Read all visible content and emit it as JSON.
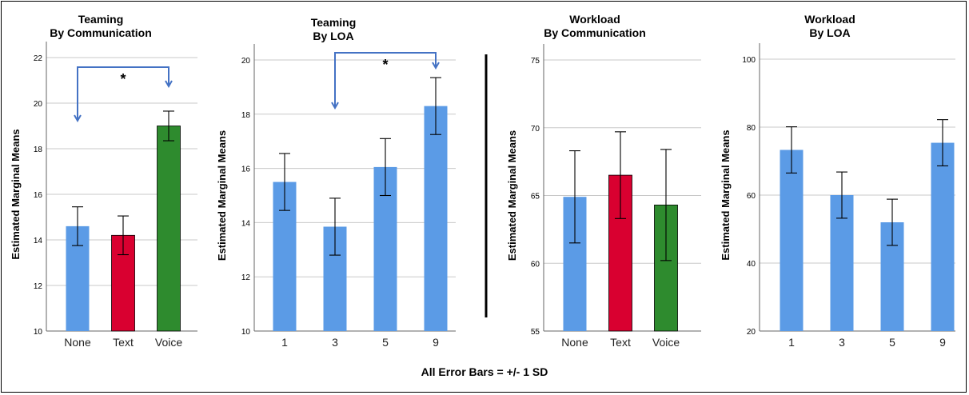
{
  "footnote": "All Error Bars = +/- 1 SD",
  "chart_data": [
    {
      "type": "bar",
      "title": "Teaming",
      "subtitle": "By Communication",
      "ylabel": "Estimated Marginal Means",
      "categories": [
        "None",
        "Text",
        "Voice"
      ],
      "values": [
        14.6,
        14.2,
        19.0
      ],
      "error": [
        0.85,
        0.85,
        0.65
      ],
      "ylim": [
        10,
        22
      ],
      "yticks": [
        10,
        12,
        14,
        16,
        18,
        20,
        22
      ],
      "colors": [
        "#5b9be6",
        "#d90030",
        "#2e8b2e"
      ],
      "annotations": [
        {
          "from": "None",
          "to": "Voice",
          "label": "*"
        }
      ]
    },
    {
      "type": "bar",
      "title": "Teaming",
      "subtitle": "By LOA",
      "ylabel": "Estimated Marginal Means",
      "categories": [
        "1",
        "3",
        "5",
        "9"
      ],
      "values": [
        15.5,
        13.85,
        16.05,
        18.3
      ],
      "error": [
        1.05,
        1.05,
        1.05,
        1.05
      ],
      "ylim": [
        10,
        20
      ],
      "yticks": [
        10,
        12,
        14,
        16,
        18,
        20
      ],
      "colors": [
        "#5b9be6",
        "#5b9be6",
        "#5b9be6",
        "#5b9be6"
      ],
      "annotations": [
        {
          "from": "3",
          "to": "9",
          "label": "*"
        }
      ]
    },
    {
      "type": "bar",
      "title": "Workload",
      "subtitle": "By Communication",
      "ylabel": "Estimated Marginal Means",
      "categories": [
        "None",
        "Text",
        "Voice"
      ],
      "values": [
        64.9,
        66.5,
        64.3
      ],
      "error": [
        3.4,
        3.2,
        4.1
      ],
      "ylim": [
        55,
        75
      ],
      "yticks": [
        55,
        60,
        65,
        70,
        75
      ],
      "colors": [
        "#5b9be6",
        "#d90030",
        "#2e8b2e"
      ],
      "annotations": []
    },
    {
      "type": "bar",
      "title": "Workload",
      "subtitle": "By LOA",
      "ylabel": "Estimated Marginal Means",
      "categories": [
        "1",
        "3",
        "5",
        "9"
      ],
      "values": [
        73.3,
        60.0,
        52.0,
        75.4
      ],
      "error": [
        6.8,
        6.8,
        6.8,
        6.8
      ],
      "ylim": [
        20,
        100
      ],
      "yticks": [
        20,
        40,
        60,
        80,
        100
      ],
      "colors": [
        "#5b9be6",
        "#5b9be6",
        "#5b9be6",
        "#5b9be6"
      ],
      "annotations": []
    }
  ]
}
